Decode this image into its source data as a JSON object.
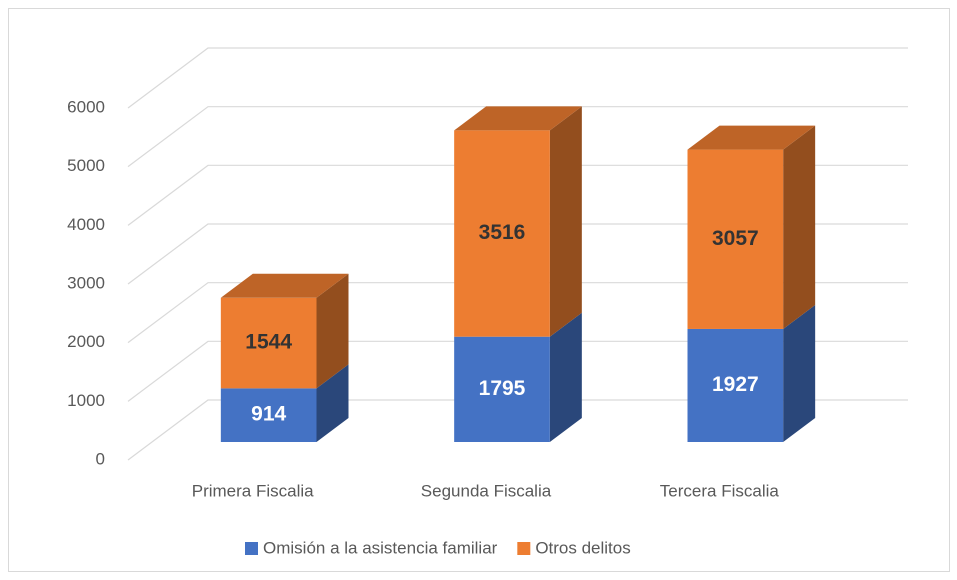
{
  "chart_data": {
    "type": "bar3d_stacked",
    "categories": [
      "Primera Fiscalia",
      "Segunda Fiscalia",
      "Tercera Fiscalia"
    ],
    "series": [
      {
        "name": "Omisión a la asistencia familiar",
        "color": "#4472c4",
        "values": [
          914,
          1795,
          1927
        ]
      },
      {
        "name": "Otros delitos",
        "color": "#ed7d31",
        "values": [
          1544,
          3516,
          3057
        ]
      }
    ],
    "ylim": [
      0,
      6000
    ],
    "yticks": [
      0,
      1000,
      2000,
      3000,
      4000,
      5000,
      6000
    ],
    "grid": true,
    "legend": "bottom"
  }
}
